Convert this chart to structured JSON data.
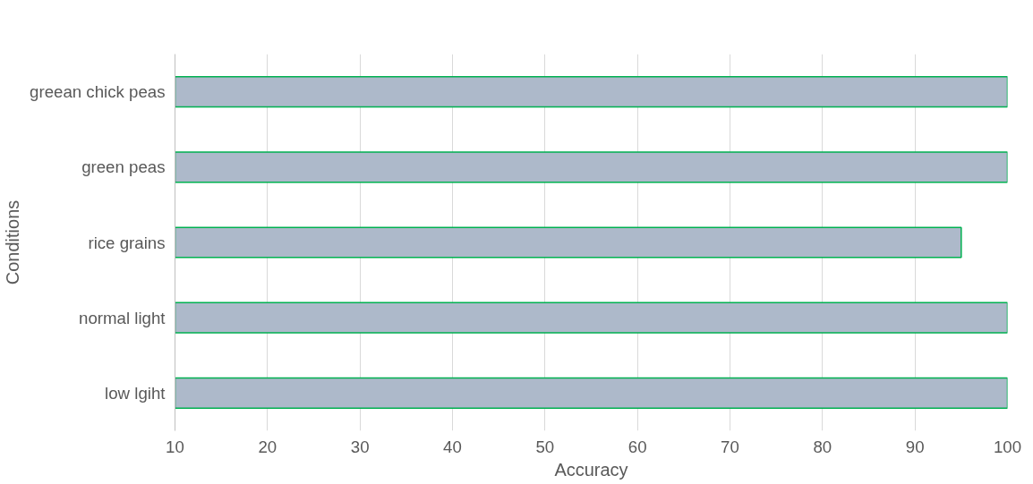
{
  "chart_data": {
    "type": "bar",
    "orientation": "horizontal",
    "xlabel": "Accuracy",
    "ylabel": "Conditions",
    "categories": [
      "greean chick peas",
      "green peas",
      "rice grains",
      "normal light",
      "low lgiht"
    ],
    "values": [
      100,
      100,
      95,
      100,
      100
    ],
    "color": "#adb9ca",
    "xlim": [
      10,
      100
    ],
    "xticks": [
      10,
      20,
      30,
      40,
      50,
      60,
      70,
      80,
      90,
      100
    ],
    "grid": "x"
  }
}
